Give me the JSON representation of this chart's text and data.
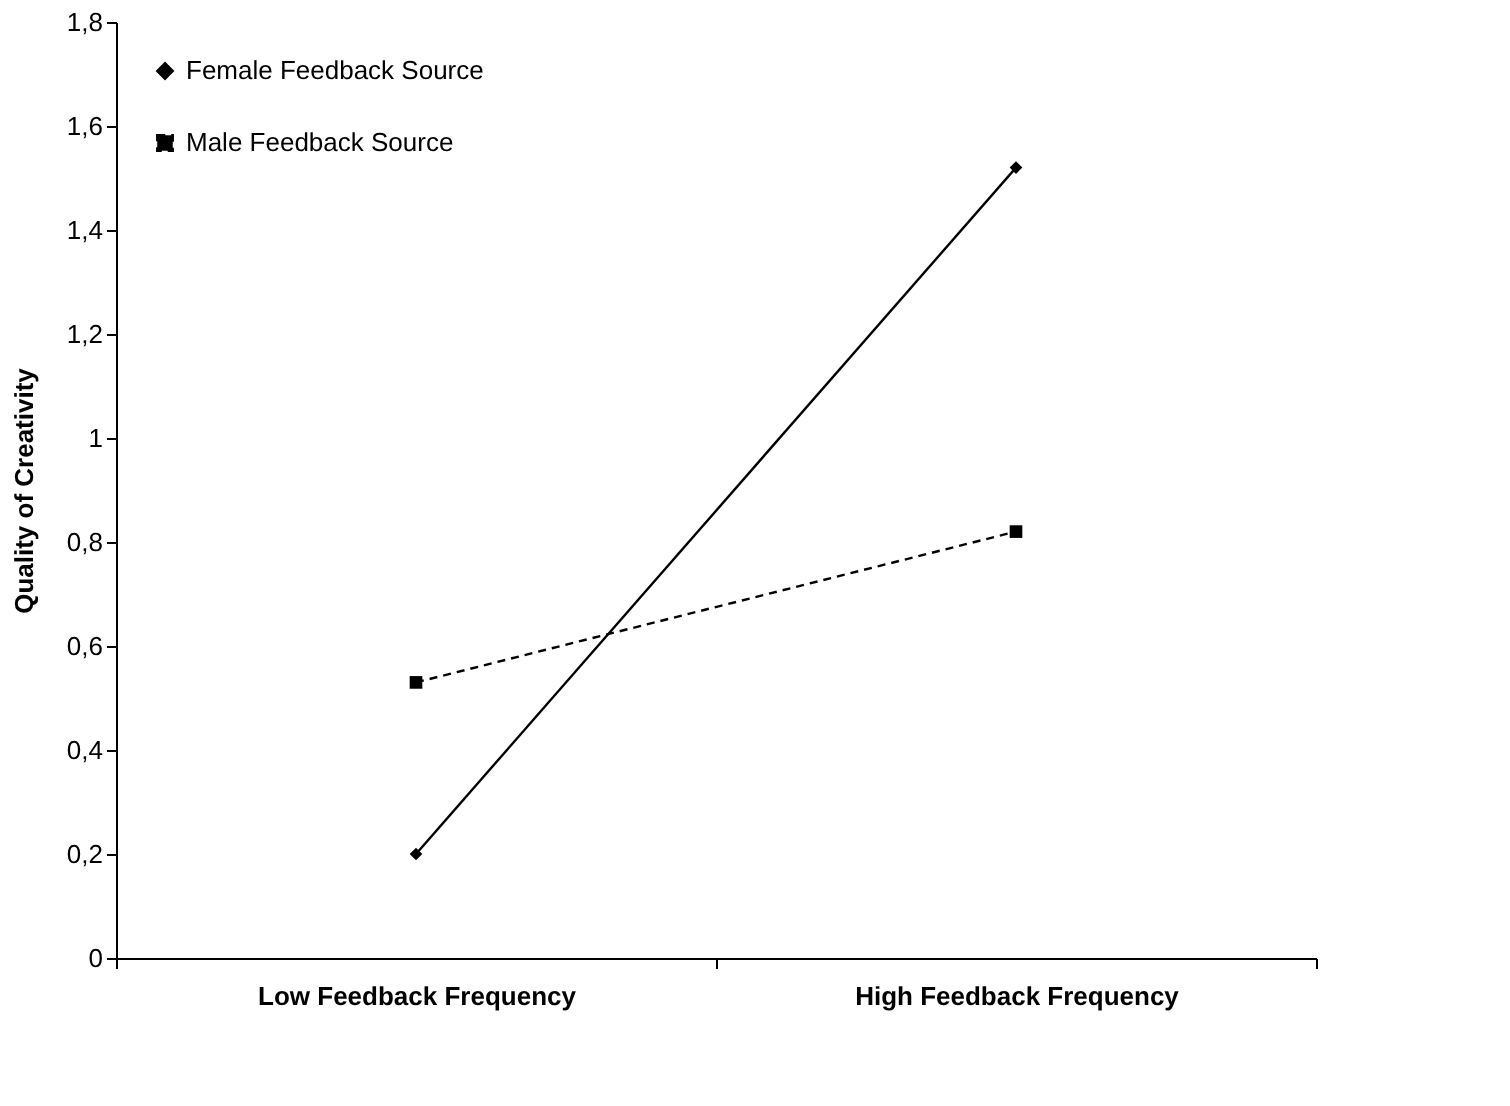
{
  "chart_data": {
    "type": "line",
    "ylabel": "Quality of Creativity",
    "categories": [
      "Low Feedback Frequency",
      "High Feedback Frequency"
    ],
    "series": [
      {
        "name": "Female Feedback Source",
        "color": "#000000",
        "values": [
          0.2,
          1.52
        ],
        "marker": "diamond",
        "line_style": "solid"
      },
      {
        "name": "Male Feedback Source",
        "color": "#000000",
        "values": [
          0.53,
          0.82
        ],
        "marker": "square",
        "line_style": "dashed"
      }
    ],
    "ylim": [
      0,
      1.8
    ],
    "yticks": [
      0,
      {
        "value": 0.2,
        "label": "0,2"
      },
      {
        "value": 0.4,
        "label": "0,4"
      },
      {
        "value": 0.6,
        "label": "0,6"
      },
      {
        "value": 0.8,
        "label": "0,8"
      },
      1,
      {
        "value": 1.2,
        "label": "1,2"
      },
      {
        "value": 1.4,
        "label": "1,4"
      },
      {
        "value": 1.6,
        "label": "1,6"
      },
      {
        "value": 1.8,
        "label": "1,8"
      }
    ],
    "grid": false,
    "legend": "top left"
  }
}
